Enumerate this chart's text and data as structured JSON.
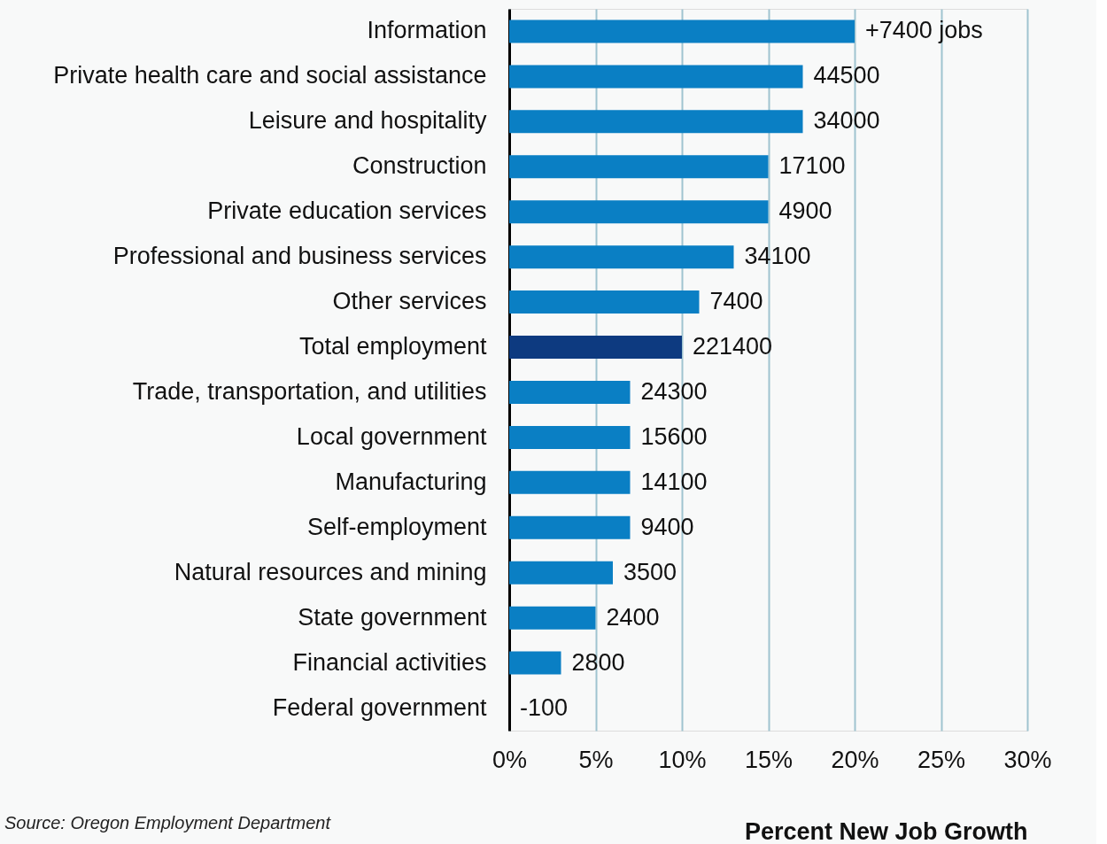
{
  "chart_data": {
    "type": "bar",
    "orientation": "horizontal",
    "categories": [
      "Information",
      "Private health care and social assistance",
      "Leisure and hospitality",
      "Construction",
      "Private education services",
      "Professional and business services",
      "Other services",
      "Total employment",
      "Trade, transportation, and utilities",
      "Local government",
      "Manufacturing",
      "Self-employment",
      "Natural resources and mining",
      "State government",
      "Financial activities",
      "Federal government"
    ],
    "values": [
      20,
      17,
      17,
      15,
      15,
      13,
      11,
      10,
      7,
      7,
      7,
      7,
      6,
      5,
      3,
      0
    ],
    "colors": [
      "#0a7fc4",
      "#0a7fc4",
      "#0a7fc4",
      "#0a7fc4",
      "#0a7fc4",
      "#0a7fc4",
      "#0a7fc4",
      "#0d3a80",
      "#0a7fc4",
      "#0a7fc4",
      "#0a7fc4",
      "#0a7fc4",
      "#0a7fc4",
      "#0a7fc4",
      "#0a7fc4",
      "#0a7fc4"
    ],
    "xlim": [
      0,
      30
    ],
    "xticks": [
      {
        "value": 0,
        "label": "0%"
      },
      {
        "value": 5,
        "label": "5%"
      },
      {
        "value": 10,
        "label": "10%"
      },
      {
        "value": 15,
        "label": "15%"
      },
      {
        "value": 20,
        "label": "20%"
      },
      {
        "value": 25,
        "label": "25%"
      },
      {
        "value": 30,
        "label": "30%"
      }
    ],
    "xlabel": "Percent New Job Growth",
    "annotations": [
      {
        "text": "+7400 jobs",
        "x": 20,
        "y": "Information"
      },
      {
        "text": "44500",
        "x": 17,
        "y": "Private health care and social assistance"
      },
      {
        "text": "34000",
        "x": 17,
        "y": "Leisure and hospitality"
      },
      {
        "text": "17100",
        "x": 15,
        "y": "Construction"
      },
      {
        "text": "4900",
        "x": 15,
        "y": "Private education services"
      },
      {
        "text": "34100",
        "x": 13,
        "y": "Professional and business services"
      },
      {
        "text": "7400",
        "x": 11,
        "y": "Other services"
      },
      {
        "text": "221400",
        "x": 10,
        "y": "Total employment"
      },
      {
        "text": "24300",
        "x": 7,
        "y": "Trade, transportation, and utilities"
      },
      {
        "text": "15600",
        "x": 7,
        "y": "Local government"
      },
      {
        "text": "14100",
        "x": 7,
        "y": "Manufacturing"
      },
      {
        "text": "9400",
        "x": 7,
        "y": "Self-employment"
      },
      {
        "text": "3500",
        "x": 6,
        "y": "Natural resources and mining"
      },
      {
        "text": "2400",
        "x": 5,
        "y": "State government"
      },
      {
        "text": "2800",
        "x": 3,
        "y": "Financial activities"
      },
      {
        "text": "-100",
        "x": 0,
        "y": "Federal government"
      },
      "Source: Oregon Employment Department"
    ],
    "grid": "x"
  }
}
